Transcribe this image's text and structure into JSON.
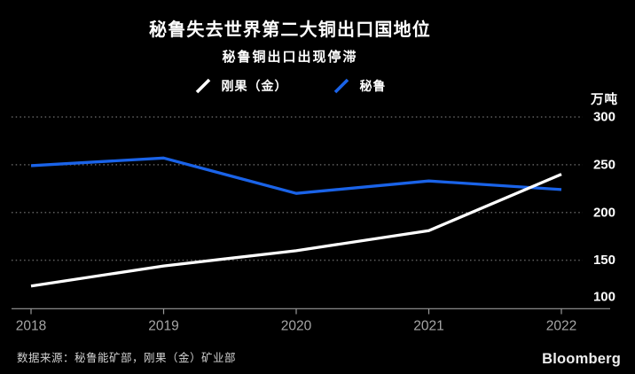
{
  "header": {
    "title": "秘鲁失去世界第二大铜出口国地位",
    "subtitle": "秘鲁铜出口出现停滞"
  },
  "legend": {
    "items": [
      {
        "label": "刚果（金）",
        "color": "#ffffff"
      },
      {
        "label": "秘鲁",
        "color": "#1a63e8"
      }
    ]
  },
  "chart_data": {
    "type": "line",
    "title": "秘鲁失去世界第二大铜出口国地位",
    "subtitle": "秘鲁铜出口出现停滞",
    "unit_label": "万吨",
    "categories": [
      "2018",
      "2019",
      "2020",
      "2021",
      "2022"
    ],
    "series": [
      {
        "name": "刚果（金）",
        "color": "#ffffff",
        "values": [
          123,
          144,
          160,
          181,
          240
        ]
      },
      {
        "name": "秘鲁",
        "color": "#1a63e8",
        "values": [
          249,
          257,
          220,
          233,
          224
        ]
      }
    ],
    "ylim": [
      100,
      300
    ],
    "y_ticks": [
      100,
      150,
      200,
      250,
      300
    ],
    "grid": "horizontal-dotted",
    "legend_position": "top-center",
    "colors": {
      "background": "#000000",
      "gridline": "#5f5f5f",
      "axis": "#9a9a9a",
      "category_label": "#a6a6a6",
      "value_label": "#ffffff"
    }
  },
  "footer": {
    "source": "数据来源：秘鲁能矿部，刚果（金）矿业部",
    "brand": "Bloomberg"
  }
}
